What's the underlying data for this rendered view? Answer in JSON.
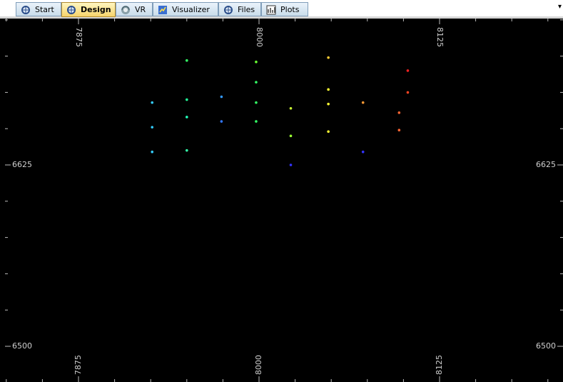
{
  "tabs": [
    {
      "label": "Start",
      "icon": "globe-icon",
      "active": false
    },
    {
      "label": "Design",
      "icon": "globe-icon",
      "active": true
    },
    {
      "label": "VR",
      "icon": "vr-icon",
      "active": false
    },
    {
      "label": "Visualizer",
      "icon": "visualizer-icon",
      "active": false
    },
    {
      "label": "Files",
      "icon": "globe-icon",
      "active": false
    },
    {
      "label": "Plots",
      "icon": "plots-icon",
      "active": false
    }
  ],
  "menu_arrow": "▾",
  "chart_data": {
    "type": "scatter",
    "title": "",
    "xlabel": "",
    "ylabel": "",
    "xlim": [
      7870,
      8205
    ],
    "ylim": [
      6492,
      6722
    ],
    "x_ticks": [
      "7875",
      "8000",
      "8125"
    ],
    "y_ticks": [
      "6625",
      "6500"
    ],
    "grid": false,
    "points": [
      {
        "x": 7926,
        "y": 6668,
        "color": "#33ccff"
      },
      {
        "x": 7926,
        "y": 6651,
        "color": "#33ccff"
      },
      {
        "x": 7926,
        "y": 6634,
        "color": "#33ccff"
      },
      {
        "x": 7950,
        "y": 6697,
        "color": "#33ff66"
      },
      {
        "x": 7950,
        "y": 6670,
        "color": "#22ff99"
      },
      {
        "x": 7950,
        "y": 6658,
        "color": "#22ffbb"
      },
      {
        "x": 7950,
        "y": 6635,
        "color": "#33ffaa"
      },
      {
        "x": 7974,
        "y": 6672,
        "color": "#3399ff"
      },
      {
        "x": 7974,
        "y": 6655,
        "color": "#3377ff"
      },
      {
        "x": 7998,
        "y": 6696,
        "color": "#66ff33"
      },
      {
        "x": 7998,
        "y": 6682,
        "color": "#33ff66"
      },
      {
        "x": 7998,
        "y": 6668,
        "color": "#33ff66"
      },
      {
        "x": 7998,
        "y": 6655,
        "color": "#33ff66"
      },
      {
        "x": 8022,
        "y": 6664,
        "color": "#ccff33"
      },
      {
        "x": 8022,
        "y": 6645,
        "color": "#99ff33"
      },
      {
        "x": 8022,
        "y": 6625,
        "color": "#3333ff"
      },
      {
        "x": 8048,
        "y": 6699,
        "color": "#ffcc33"
      },
      {
        "x": 8048,
        "y": 6677,
        "color": "#ffff33"
      },
      {
        "x": 8048,
        "y": 6667,
        "color": "#ffff33"
      },
      {
        "x": 8048,
        "y": 6648,
        "color": "#ffff33"
      },
      {
        "x": 8072,
        "y": 6668,
        "color": "#ff9933"
      },
      {
        "x": 8072,
        "y": 6634,
        "color": "#3333ff"
      },
      {
        "x": 8097,
        "y": 6661,
        "color": "#ff6633"
      },
      {
        "x": 8097,
        "y": 6649,
        "color": "#ff6633"
      },
      {
        "x": 8103,
        "y": 6690,
        "color": "#ff2222"
      },
      {
        "x": 8103,
        "y": 6675,
        "color": "#ff4422"
      }
    ]
  }
}
